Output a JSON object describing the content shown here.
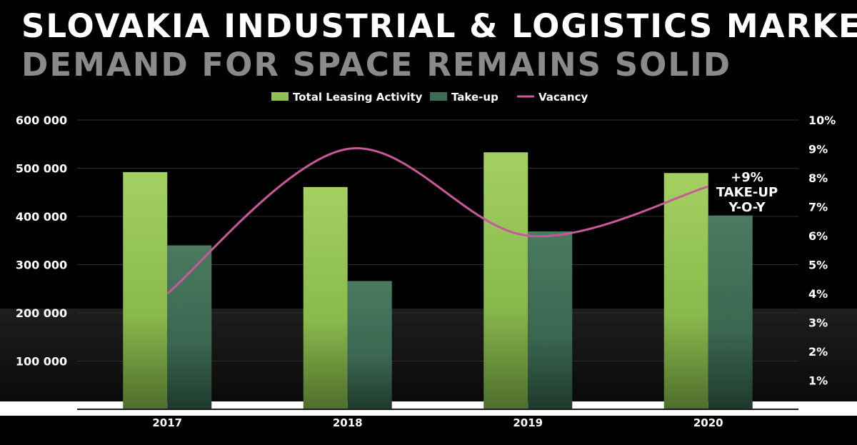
{
  "title": "SLOVAKIA INDUSTRIAL & LOGISTICS MARKET",
  "subtitle": "DEMAND FOR SPACE REMAINS SOLID",
  "colors": {
    "total_leasing": "#8fc050",
    "take_up": "#3f6b55",
    "vacancy": "#c8589a",
    "subtitle": "#8a8a8a"
  },
  "chart_data": {
    "type": "bar",
    "categories": [
      "2017",
      "2018",
      "2019",
      "2020"
    ],
    "series": [
      {
        "name": "Total Leasing Activity",
        "type": "bar",
        "axis": "left",
        "values": [
          492000,
          461000,
          533000,
          490000
        ]
      },
      {
        "name": "Take-up",
        "type": "bar",
        "axis": "left",
        "values": [
          340000,
          266000,
          369000,
          402000
        ]
      },
      {
        "name": "Vacancy",
        "type": "line",
        "axis": "right",
        "values": [
          4.0,
          9.0,
          6.0,
          7.7
        ]
      }
    ],
    "y_left": {
      "range": [
        0,
        600000
      ],
      "ticks": [
        100000,
        200000,
        300000,
        400000,
        500000,
        600000
      ],
      "tick_labels": [
        "100 000",
        "200 000",
        "300 000",
        "400 000",
        "500 000",
        "600 000"
      ]
    },
    "y_right": {
      "range": [
        0,
        10
      ],
      "ticks": [
        1,
        2,
        3,
        4,
        5,
        6,
        7,
        8,
        9,
        10
      ],
      "tick_labels": [
        "1%",
        "2%",
        "3%",
        "4%",
        "5%",
        "6%",
        "7%",
        "8%",
        "9%",
        "10%"
      ]
    },
    "legend_position": "top-center",
    "grid": true,
    "annotation": [
      "+9%",
      "TAKE-UP",
      "Y-O-Y"
    ]
  }
}
